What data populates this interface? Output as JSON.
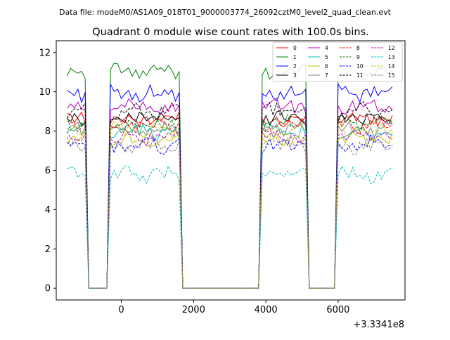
{
  "chart_data": {
    "type": "line",
    "suptitle": "Data file: modeM0/AS1A09_018T01_9000003774_26092cztM0_level2_quad_clean.evt",
    "title": "Quadrant 0 module wise count rates with 100.0s bins.",
    "xlabel": "",
    "ylabel": "",
    "x_offset_label": "+3.3341e8",
    "xlim": [
      -1800,
      7850
    ],
    "ylim": [
      -0.6,
      12.6
    ],
    "x_ticks": [
      0,
      2000,
      4000,
      6000
    ],
    "x_tick_labels": [
      "0",
      "2000",
      "4000",
      "6000"
    ],
    "y_ticks": [
      0,
      2,
      4,
      6,
      8,
      10,
      12
    ],
    "y_tick_labels": [
      "0",
      "2",
      "4",
      "6",
      "8",
      "10",
      "12"
    ],
    "x_range": {
      "start": -1500,
      "step": 100,
      "count": 91
    },
    "segments": [
      {
        "from": -1500,
        "to": -1000,
        "state": "on"
      },
      {
        "from": -900,
        "to": -400,
        "state": "off"
      },
      {
        "from": -300,
        "to": 1600,
        "state": "on"
      },
      {
        "from": 1700,
        "to": 3800,
        "state": "off"
      },
      {
        "from": 3900,
        "to": 5100,
        "state": "on"
      },
      {
        "from": 5200,
        "to": 5900,
        "state": "off"
      },
      {
        "from": 6000,
        "to": 7500,
        "state": "on"
      }
    ],
    "legend": {
      "position": "top-right",
      "columns": 4
    },
    "series": [
      {
        "name": "0",
        "color": "#ff0000",
        "dash": "solid",
        "level": 8.6
      },
      {
        "name": "1",
        "color": "#008000",
        "dash": "solid",
        "level": 11.0
      },
      {
        "name": "2",
        "color": "#0000ff",
        "dash": "solid",
        "level": 9.9
      },
      {
        "name": "3",
        "color": "#000000",
        "dash": "solid",
        "level": 8.7
      },
      {
        "name": "4",
        "color": "#bf00bf",
        "dash": "solid",
        "level": 9.3
      },
      {
        "name": "5",
        "color": "#00bfbf",
        "dash": "solid",
        "level": 8.0
      },
      {
        "name": "6",
        "color": "#bfbf00",
        "dash": "solid",
        "level": 7.6
      },
      {
        "name": "7",
        "color": "#808080",
        "dash": "solid",
        "level": 8.1
      },
      {
        "name": "8",
        "color": "#ff0000",
        "dash": "dashed",
        "level": 8.3
      },
      {
        "name": "9",
        "color": "#008000",
        "dash": "dashed",
        "level": 8.4
      },
      {
        "name": "10",
        "color": "#0000ff",
        "dash": "dashed",
        "level": 7.3
      },
      {
        "name": "11",
        "color": "#000000",
        "dash": "dashed",
        "level": 9.0
      },
      {
        "name": "12",
        "color": "#bf00bf",
        "dash": "dashed",
        "level": 7.7
      },
      {
        "name": "13",
        "color": "#00bfbf",
        "dash": "dashed",
        "level": 5.8
      },
      {
        "name": "14",
        "color": "#bfbf00",
        "dash": "dashed",
        "level": 8.0
      },
      {
        "name": "15",
        "color": "#808080",
        "dash": "dashed",
        "level": 7.3
      }
    ]
  }
}
